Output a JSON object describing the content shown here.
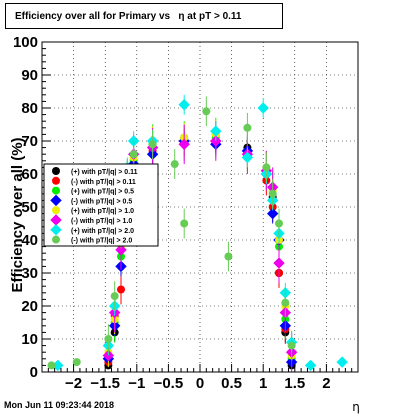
{
  "chart_data": {
    "type": "scatter",
    "title": "Efficiency over all for Primary vs   η at pT > 0.11",
    "xlabel": "η",
    "ylabel": "Efficiency over all (%)",
    "xlim": [
      -2.5,
      2.5
    ],
    "ylim": [
      0,
      100
    ],
    "xticks": [
      -2,
      -1.5,
      -1,
      -0.5,
      0,
      0.5,
      1,
      1.5,
      2
    ],
    "xtick_labels": [
      "−2",
      "−1.5",
      "−1",
      "−0.5",
      "0",
      "0.5",
      "1",
      "1.5",
      "2"
    ],
    "yticks": [
      0,
      10,
      20,
      30,
      40,
      50,
      60,
      70,
      80,
      90,
      100
    ],
    "ytick_labels": [
      "0",
      "10",
      "20",
      "30",
      "40",
      "50",
      "60",
      "70",
      "80",
      "90",
      "100"
    ],
    "grid": true,
    "legend_position": "left",
    "series": [
      {
        "name": "(+) with pT/|q| > 0.11",
        "color": "#000000",
        "x": [
          -1.45,
          -1.35,
          -1.25,
          -1.15,
          -1.05,
          -0.75,
          -0.25,
          0.25,
          0.75,
          1.05,
          1.15,
          1.25,
          1.35,
          1.45
        ],
        "y": [
          2,
          12,
          32,
          52,
          63,
          68,
          71,
          70,
          68,
          60,
          53,
          30,
          12,
          2
        ]
      },
      {
        "name": "(-) with pT/|q| > 0.11",
        "color": "#ff0000",
        "x": [
          -1.45,
          -1.35,
          -1.25,
          -1.15,
          -1.05,
          -0.75,
          -0.25,
          0.25,
          0.75,
          1.05,
          1.15,
          1.25,
          1.35,
          1.45
        ],
        "y": [
          3,
          17,
          25,
          50,
          62,
          67,
          70,
          72,
          66,
          58,
          50,
          30,
          13,
          3
        ]
      },
      {
        "name": "(+) with pT/|q| > 0.5",
        "color": "#00ee00",
        "x": [
          -1.45,
          -1.35,
          -1.25,
          -1.15,
          -1.05,
          -0.75,
          -0.25,
          0.25,
          0.75,
          1.05,
          1.15,
          1.25,
          1.35,
          1.45
        ],
        "y": [
          5,
          15,
          35,
          57,
          64,
          69,
          70,
          71,
          67,
          61,
          55,
          38,
          16,
          4
        ]
      },
      {
        "name": "(-) with pT/|q| > 0.5",
        "color": "#0000ff",
        "x": [
          -1.45,
          -1.35,
          -1.25,
          -1.15,
          -1.05,
          -0.75,
          -0.25,
          0.25,
          0.75,
          1.05,
          1.15,
          1.25,
          1.35,
          1.45
        ],
        "y": [
          4,
          14,
          32,
          55,
          63,
          66,
          70,
          69,
          67,
          60,
          48,
          40,
          14,
          3
        ]
      },
      {
        "name": "(+) with pT/|q| > 1.0",
        "color": "#eeee00",
        "x": [
          -1.45,
          -1.35,
          -1.25,
          -1.15,
          -1.05,
          -0.75,
          -0.25,
          0.25,
          0.75,
          1.05,
          1.15,
          1.25,
          1.35,
          1.45
        ],
        "y": [
          6,
          16,
          38,
          59,
          65,
          70,
          71,
          72,
          65,
          62,
          55,
          40,
          20,
          5
        ]
      },
      {
        "name": "(-) with pT/|q| > 1.0",
        "color": "#ee00ee",
        "x": [
          -1.45,
          -1.35,
          -1.25,
          -1.15,
          -1.05,
          -0.75,
          -0.25,
          0.25,
          0.75,
          1.05,
          1.15,
          1.25,
          1.35,
          1.45
        ],
        "y": [
          5,
          18,
          37,
          58,
          66,
          68,
          69,
          70,
          66,
          61,
          56,
          33,
          18,
          6
        ]
      },
      {
        "name": "(+) with pT/|q| > 2.0",
        "color": "#00eeee",
        "x": [
          -2.25,
          -1.45,
          -1.35,
          -1.25,
          -1.15,
          -1.05,
          -0.75,
          -0.25,
          0.25,
          0.75,
          1.0,
          1.05,
          1.15,
          1.25,
          1.35,
          1.45,
          1.75,
          2.25
        ],
        "y": [
          2,
          8,
          20,
          45,
          62,
          70,
          70,
          81,
          73,
          65,
          80,
          60,
          52,
          42,
          24,
          9,
          2,
          3
        ]
      },
      {
        "name": "(-) with pT/|q| > 2.0",
        "color": "#66cc55",
        "x": [
          -2.35,
          -1.95,
          -1.45,
          -1.35,
          -1.25,
          -1.15,
          -1.05,
          -0.75,
          -0.4,
          -0.25,
          0.1,
          0.45,
          0.75,
          1.05,
          1.15,
          1.25,
          1.35,
          1.45
        ],
        "y": [
          2,
          3,
          10,
          23,
          42,
          60,
          66,
          69,
          63,
          45,
          79,
          35,
          74,
          62,
          54,
          45,
          21,
          8
        ]
      }
    ]
  },
  "footer_timestamp": "Mon Jun 11 09:23:44 2018"
}
